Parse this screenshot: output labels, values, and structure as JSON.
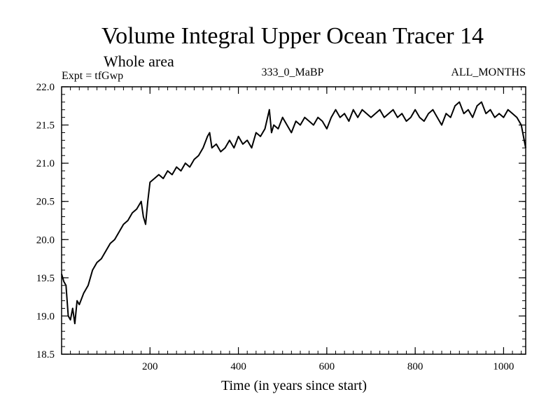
{
  "chart_data": {
    "type": "line",
    "title": "Volume Integral Upper Ocean Tracer 14",
    "subtitle": "Whole area",
    "experiment_label": "Expt = tfGwp",
    "run_label": "333_0_MaBP",
    "months_label": "ALL_MONTHS",
    "xlabel": "Time (in years since start)",
    "ylabel": "",
    "xlim": [
      0,
      1050
    ],
    "ylim": [
      18.5,
      22.0
    ],
    "xticks": [
      200,
      400,
      600,
      800,
      1000
    ],
    "yticks": [
      18.5,
      19.0,
      19.5,
      20.0,
      20.5,
      21.0,
      21.5,
      22.0
    ],
    "ytick_labels": [
      "18.5",
      "19.0",
      "19.5",
      "20.0",
      "20.5",
      "21.0",
      "21.5",
      "22.0"
    ],
    "grid": false,
    "series": [
      {
        "name": "tracer14",
        "x": [
          0,
          5,
          10,
          15,
          20,
          25,
          30,
          35,
          40,
          50,
          60,
          70,
          80,
          90,
          100,
          110,
          120,
          130,
          140,
          150,
          160,
          170,
          180,
          185,
          190,
          195,
          200,
          210,
          220,
          230,
          240,
          250,
          260,
          270,
          280,
          290,
          300,
          310,
          320,
          330,
          335,
          340,
          350,
          360,
          370,
          380,
          390,
          400,
          410,
          420,
          430,
          440,
          450,
          460,
          470,
          475,
          480,
          490,
          500,
          510,
          520,
          530,
          540,
          550,
          560,
          570,
          580,
          590,
          600,
          610,
          620,
          630,
          640,
          650,
          660,
          670,
          680,
          690,
          700,
          710,
          720,
          730,
          740,
          750,
          760,
          770,
          780,
          790,
          800,
          810,
          820,
          830,
          840,
          850,
          860,
          870,
          880,
          890,
          900,
          910,
          920,
          930,
          940,
          950,
          960,
          970,
          980,
          990,
          1000,
          1010,
          1020,
          1030,
          1040,
          1045,
          1050
        ],
        "values": [
          19.55,
          19.45,
          19.4,
          19.0,
          18.95,
          19.1,
          18.9,
          19.2,
          19.15,
          19.3,
          19.4,
          19.6,
          19.7,
          19.75,
          19.85,
          19.95,
          20.0,
          20.1,
          20.2,
          20.25,
          20.35,
          20.4,
          20.5,
          20.3,
          20.2,
          20.5,
          20.75,
          20.8,
          20.85,
          20.8,
          20.9,
          20.85,
          20.95,
          20.9,
          21.0,
          20.95,
          21.05,
          21.1,
          21.2,
          21.35,
          21.4,
          21.2,
          21.25,
          21.15,
          21.2,
          21.3,
          21.2,
          21.35,
          21.25,
          21.3,
          21.2,
          21.4,
          21.35,
          21.45,
          21.7,
          21.4,
          21.5,
          21.45,
          21.6,
          21.5,
          21.4,
          21.55,
          21.5,
          21.6,
          21.55,
          21.5,
          21.6,
          21.55,
          21.45,
          21.6,
          21.7,
          21.6,
          21.65,
          21.55,
          21.7,
          21.6,
          21.7,
          21.65,
          21.6,
          21.65,
          21.7,
          21.6,
          21.65,
          21.7,
          21.6,
          21.65,
          21.55,
          21.6,
          21.7,
          21.6,
          21.55,
          21.65,
          21.7,
          21.6,
          21.5,
          21.65,
          21.6,
          21.75,
          21.8,
          21.65,
          21.7,
          21.6,
          21.75,
          21.8,
          21.65,
          21.7,
          21.6,
          21.65,
          21.6,
          21.7,
          21.65,
          21.6,
          21.5,
          21.35,
          21.2
        ]
      }
    ]
  }
}
